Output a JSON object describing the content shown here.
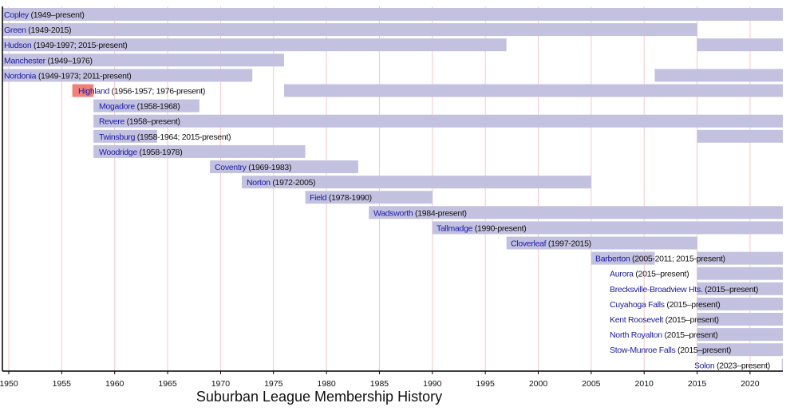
{
  "chart_data": {
    "type": "timeline",
    "title": "Suburban League Membership History",
    "xlim": [
      1949.4,
      2023.1
    ],
    "xticks": [
      1950,
      1955,
      1960,
      1965,
      1970,
      1975,
      1980,
      1985,
      1990,
      1995,
      2000,
      2005,
      2010,
      2015,
      2020
    ],
    "grid": true,
    "colors": {
      "member": "#c3c1e0",
      "highlight": "#f08078",
      "grid": "#f5c8cc",
      "name": "#1a1aa6",
      "axis": "#000000"
    },
    "rows": [
      {
        "name": "Copley",
        "period": "(1949–present)",
        "segments": [
          [
            1949,
            2023.1
          ]
        ]
      },
      {
        "name": "Green",
        "period": "(1949-2015)",
        "segments": [
          [
            1949,
            2015
          ]
        ]
      },
      {
        "name": "Hudson",
        "period": "(1949-1997; 2015-present)",
        "segments": [
          [
            1949,
            1997
          ],
          [
            2015,
            2023.1
          ]
        ]
      },
      {
        "name": "Manchester",
        "period": "(1949–1976)",
        "segments": [
          [
            1949,
            1976
          ]
        ]
      },
      {
        "name": "Nordonia",
        "period": "(1949-1973; 2011-present)",
        "segments": [
          [
            1949,
            1973
          ],
          [
            2011,
            2023.1
          ]
        ]
      },
      {
        "name": "Highland",
        "period": "(1956-1957; 1976-present)",
        "segments": [
          [
            1956,
            1958,
            "highlight"
          ],
          [
            1976,
            2023.1
          ]
        ]
      },
      {
        "name": "Mogadore",
        "period": "(1958-1968)",
        "segments": [
          [
            1958,
            1968
          ]
        ]
      },
      {
        "name": "Revere",
        "period": "(1958–present)",
        "segments": [
          [
            1958,
            2023.1
          ]
        ]
      },
      {
        "name": "Twinsburg",
        "period": "(1958-1964; 2015-present)",
        "segments": [
          [
            1958,
            1964
          ],
          [
            2015,
            2023.1
          ]
        ]
      },
      {
        "name": "Woodridge",
        "period": "(1958-1978)",
        "segments": [
          [
            1958,
            1978
          ]
        ]
      },
      {
        "name": "Coventry",
        "period": "(1969-1983)",
        "segments": [
          [
            1969,
            1983
          ]
        ]
      },
      {
        "name": "Norton",
        "period": "(1972-2005)",
        "segments": [
          [
            1972,
            2005
          ]
        ]
      },
      {
        "name": "Field",
        "period": "(1978-1990)",
        "segments": [
          [
            1978,
            1990
          ]
        ]
      },
      {
        "name": "Wadsworth",
        "period": "(1984-present)",
        "segments": [
          [
            1984,
            2023.1
          ]
        ]
      },
      {
        "name": "Tallmadge",
        "period": "(1990-present)",
        "segments": [
          [
            1990,
            2023.1
          ]
        ]
      },
      {
        "name": "Cloverleaf",
        "period": "(1997-2015)",
        "segments": [
          [
            1997,
            2015
          ]
        ]
      },
      {
        "name": "Barberton",
        "period": "(2005-2011; 2015-present)",
        "segments": [
          [
            2005,
            2011
          ],
          [
            2015,
            2023.1
          ]
        ]
      },
      {
        "name": "Aurora",
        "period": "(2015–present)",
        "segments": [
          [
            2015,
            2023.1
          ]
        ]
      },
      {
        "name": "Brecksville-Broadview Hts.",
        "period": "(2015–present)",
        "segments": [
          [
            2015,
            2023.1
          ]
        ]
      },
      {
        "name": "Cuyahoga Falls",
        "period": "(2015–present)",
        "segments": [
          [
            2015,
            2023.1
          ]
        ]
      },
      {
        "name": "Kent Roosevelt",
        "period": "(2015–present)",
        "segments": [
          [
            2015,
            2023.1
          ]
        ]
      },
      {
        "name": "North Royalton",
        "period": "(2015–present)",
        "segments": [
          [
            2015,
            2023.1
          ]
        ]
      },
      {
        "name": "Stow-Munroe Falls",
        "period": "(2015–present)",
        "segments": [
          [
            2015,
            2023.1
          ]
        ]
      },
      {
        "name": "Solon",
        "period": "(2023–present)",
        "segments": [
          [
            2023,
            2023.1
          ]
        ]
      }
    ]
  }
}
